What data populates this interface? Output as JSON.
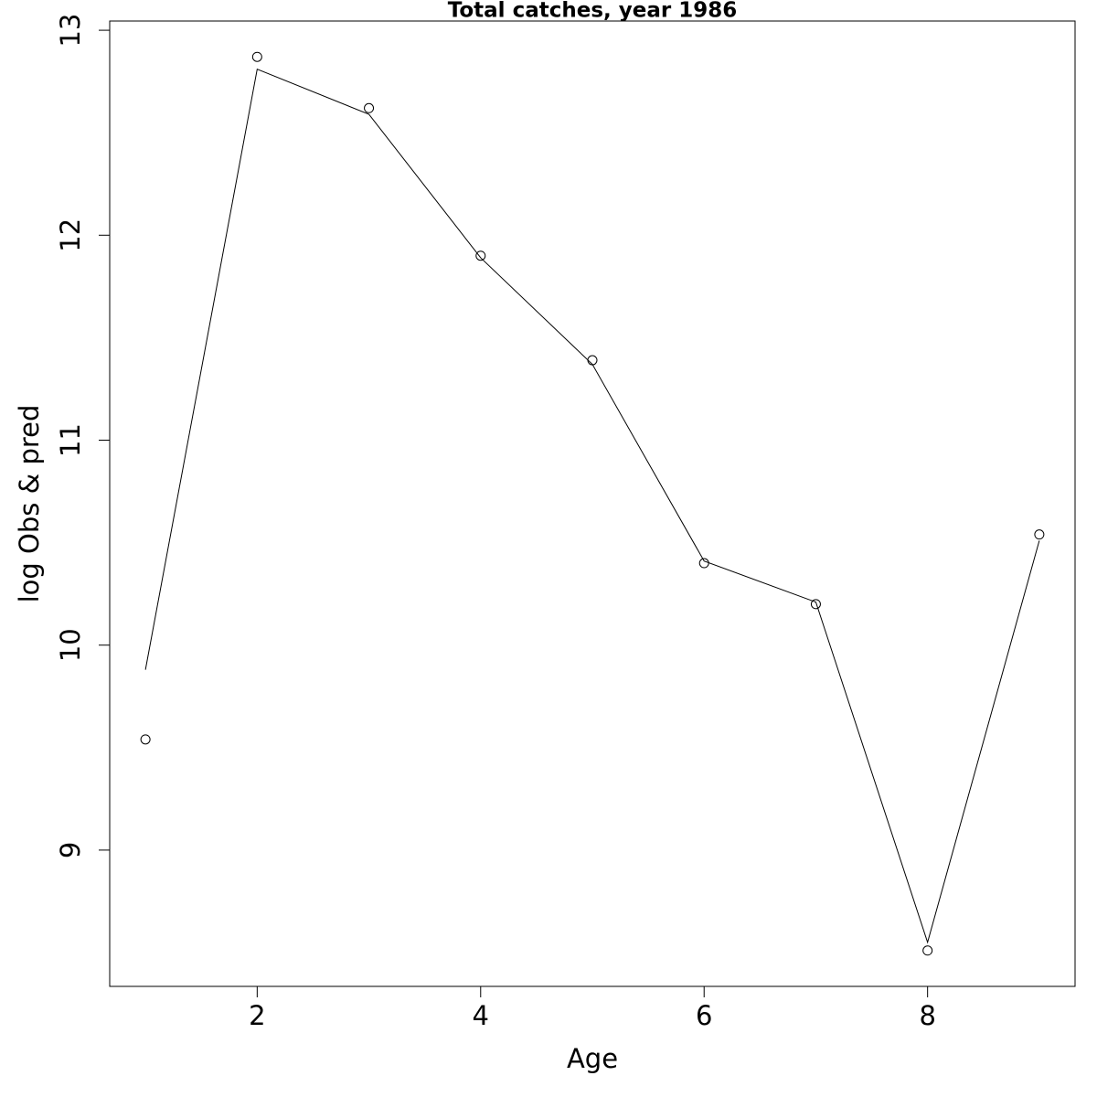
{
  "chart_data": {
    "type": "line",
    "title": "Total catches, year 1986",
    "x_label": "Age",
    "y_label": "log Obs & pred",
    "x": [
      1,
      2,
      3,
      4,
      5,
      6,
      7,
      8,
      9
    ],
    "series": [
      {
        "style": "points",
        "color": "#000000",
        "values": [
          9.54,
          12.87,
          12.62,
          11.9,
          11.39,
          10.4,
          10.2,
          8.51,
          10.54
        ]
      },
      {
        "style": "line",
        "color": "#000000",
        "values": [
          9.88,
          12.81,
          12.59,
          11.89,
          11.37,
          10.41,
          10.21,
          8.55,
          10.51
        ]
      }
    ],
    "xlim": [
      0.68,
      9.32
    ],
    "ylim": [
      8.335,
      13.045
    ],
    "xticks": [
      2,
      4,
      6,
      8
    ],
    "yticks": [
      9,
      10,
      11,
      12,
      13
    ],
    "grid": false
  }
}
